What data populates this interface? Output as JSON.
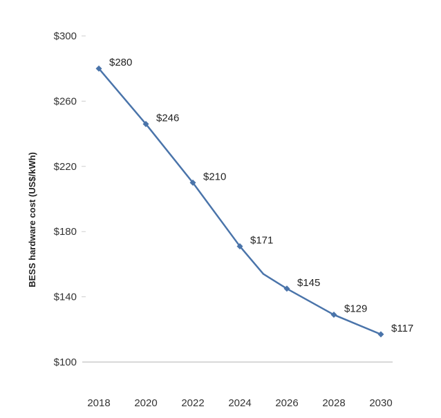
{
  "chart_data": {
    "type": "line",
    "title": "",
    "xlabel": "",
    "ylabel": "BESS hardware cost (US$/kWh)",
    "x": [
      2018,
      2020,
      2022,
      2024,
      2026,
      2028,
      2030
    ],
    "series": [
      {
        "values": [
          280,
          246,
          210,
          171,
          145,
          129,
          117
        ],
        "labels": [
          "$280",
          "$246",
          "$210",
          "$171",
          "$145",
          "$129",
          "$117"
        ],
        "unlabeled_points": [
          {
            "x": 2025,
            "y": 154
          }
        ]
      }
    ],
    "x_tick_labels": [
      "2018",
      "2020",
      "2022",
      "2024",
      "2026",
      "2028",
      "2030"
    ],
    "y_ticks": [
      100,
      140,
      180,
      220,
      260,
      300
    ],
    "y_tick_labels": [
      "$100",
      "$140",
      "$180",
      "$220",
      "$260",
      "$300"
    ],
    "ylim": [
      100,
      300
    ],
    "grid": false,
    "colors": {
      "line": "#4a74aa",
      "axis": "#cccccc",
      "text": "#333333"
    }
  }
}
